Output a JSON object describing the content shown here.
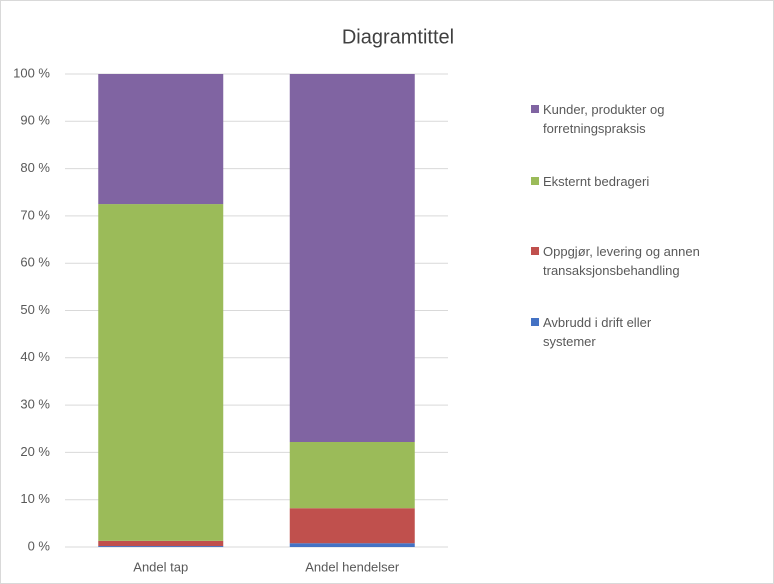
{
  "chart_data": {
    "type": "stacked-bar",
    "title": "Diagramtittel",
    "categories": [
      "Andel tap",
      "Andel hendelser"
    ],
    "series": [
      {
        "name": "Avbrudd i drift eller systemer",
        "color": "#4472c4",
        "values": [
          0.2,
          0.8
        ]
      },
      {
        "name": "Oppgjør, levering og annen transaksjonsbehandling",
        "color": "#c0504d",
        "values": [
          1.1,
          7.4
        ]
      },
      {
        "name": "Eksternt bedrageri",
        "color": "#9bbb59",
        "values": [
          71.2,
          14.0
        ]
      },
      {
        "name": "Kunder, produkter og forretningspraksis",
        "color": "#8064a2",
        "values": [
          27.5,
          77.8
        ]
      }
    ],
    "ylim": [
      0,
      100
    ],
    "yticks": [
      {
        "value": 0,
        "label": "0 %"
      },
      {
        "value": 10,
        "label": "10 %"
      },
      {
        "value": 20,
        "label": "20 %"
      },
      {
        "value": 30,
        "label": "30 %"
      },
      {
        "value": 40,
        "label": "40 %"
      },
      {
        "value": 50,
        "label": "50 %"
      },
      {
        "value": 60,
        "label": "60 %"
      },
      {
        "value": 70,
        "label": "70 %"
      },
      {
        "value": 80,
        "label": "80 %"
      },
      {
        "value": 90,
        "label": "90 %"
      },
      {
        "value": 100,
        "label": "100 %"
      }
    ],
    "grid": true
  }
}
